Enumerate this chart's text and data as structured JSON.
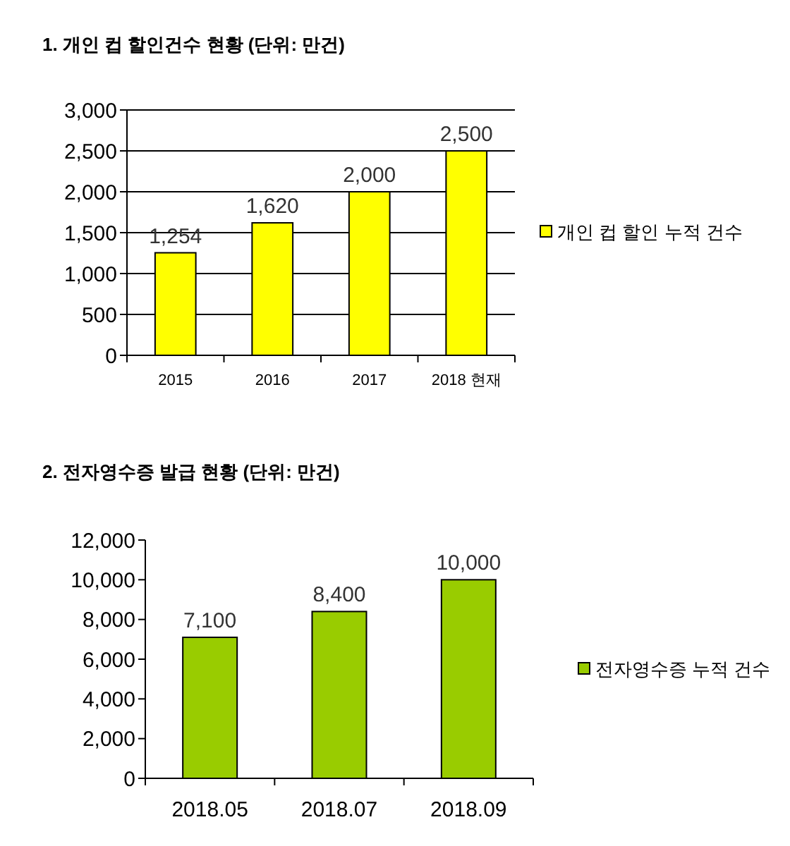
{
  "chart_data": [
    {
      "type": "bar",
      "title": "1. 개인 컵 할인건수 현황 (단위: 만건)",
      "categories": [
        "2015",
        "2016",
        "2017",
        "2018 현재"
      ],
      "series": [
        {
          "name": "개인 컵 할인 누적 건수",
          "color": "#ffff00",
          "values": [
            1254,
            1620,
            2000,
            2500
          ],
          "value_labels": [
            "1,254",
            "1,620",
            "2,000",
            "2,500"
          ]
        }
      ],
      "ylim": [
        0,
        3000
      ],
      "yticks": [
        {
          "value": 0,
          "label": "0"
        },
        {
          "value": 500,
          "label": "500"
        },
        {
          "value": 1000,
          "label": "1,000"
        },
        {
          "value": 1500,
          "label": "1,500"
        },
        {
          "value": 2000,
          "label": "2,000"
        },
        {
          "value": 2500,
          "label": "2,500"
        },
        {
          "value": 3000,
          "label": "3,000"
        }
      ],
      "grid": "y",
      "legend": "right"
    },
    {
      "type": "bar",
      "title": "2. 전자영수증 발급 현황 (단위: 만건)",
      "categories": [
        "2018.05",
        "2018.07",
        "2018.09"
      ],
      "series": [
        {
          "name": "전자영수증 누적 건수",
          "color": "#99cc00",
          "values": [
            7100,
            8400,
            10000
          ],
          "value_labels": [
            "7,100",
            "8,400",
            "10,000"
          ]
        }
      ],
      "ylim": [
        0,
        12000
      ],
      "yticks": [
        {
          "value": 0,
          "label": "0"
        },
        {
          "value": 2000,
          "label": "2,000"
        },
        {
          "value": 4000,
          "label": "4,000"
        },
        {
          "value": 6000,
          "label": "6,000"
        },
        {
          "value": 8000,
          "label": "8,000"
        },
        {
          "value": 10000,
          "label": "10,000"
        },
        {
          "value": 12000,
          "label": "12,000"
        }
      ],
      "legend": "right"
    }
  ]
}
